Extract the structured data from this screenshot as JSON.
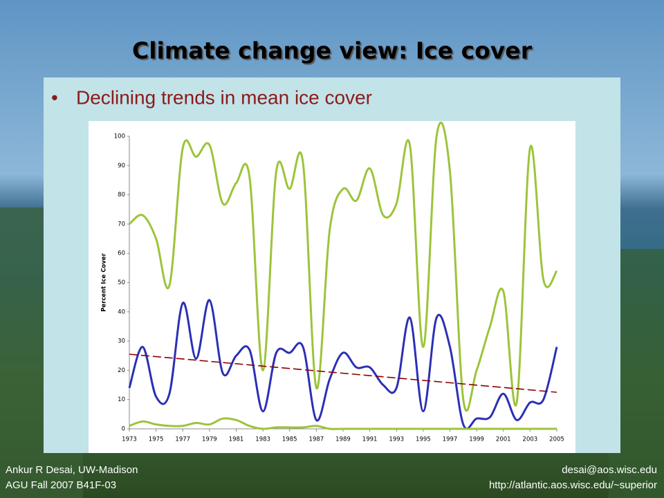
{
  "header": {
    "title": "Climate change view: Ice cover"
  },
  "bullet": "Declining trends in mean ice cover",
  "footer": {
    "left": [
      "Ankur R Desai, UW-Madison",
      "AGU Fall 2007 B41F-03"
    ],
    "right": [
      "desai@aos.wisc.edu",
      "http://atlantic.aos.wisc.edu/~superior"
    ]
  },
  "chart_data": {
    "type": "line",
    "y_label": "Percent Ice Cover",
    "x": [
      1973,
      1974,
      1975,
      1976,
      1977,
      1978,
      1979,
      1980,
      1981,
      1982,
      1983,
      1984,
      1985,
      1986,
      1987,
      1988,
      1989,
      1990,
      1991,
      1992,
      1993,
      1994,
      1995,
      1996,
      1997,
      1998,
      1999,
      2000,
      2001,
      2002,
      2003,
      2004,
      2005
    ],
    "series": [
      {
        "color": "#9cc43a",
        "values": [
          70,
          73,
          65,
          49,
          96,
          93,
          97,
          77,
          84,
          86,
          20,
          88,
          82,
          91,
          14,
          68,
          82,
          78,
          89,
          73,
          77,
          97,
          28,
          100,
          88,
          10,
          20,
          35,
          47,
          9,
          96,
          51,
          54
        ]
      },
      {
        "color": "#2b2fb5",
        "values": [
          14,
          28,
          11,
          12,
          43,
          24,
          44,
          19,
          25,
          27,
          6,
          26,
          26,
          28,
          3,
          17,
          26,
          21,
          21,
          15,
          14,
          38,
          6,
          38,
          28,
          1.5,
          3.5,
          4,
          12,
          3,
          9,
          10,
          28
        ]
      },
      {
        "color": "#9cc43a",
        "values": [
          1,
          2.5,
          1.5,
          1,
          1,
          2,
          1.5,
          3.5,
          3,
          1,
          0,
          0.5,
          0.5,
          0.5,
          1,
          0,
          0,
          0,
          0,
          0,
          0,
          0,
          0,
          0,
          0,
          0,
          0,
          0,
          0,
          0,
          0,
          0,
          0
        ]
      },
      {
        "color": "#8b0000",
        "dashed": true,
        "x": [
          1973,
          2005
        ],
        "values": [
          25.5,
          12.5
        ]
      }
    ],
    "xlim": [
      1973,
      2005
    ],
    "xticks": [
      1973,
      1975,
      1977,
      1979,
      1981,
      1983,
      1985,
      1987,
      1989,
      1991,
      1993,
      1995,
      1997,
      1999,
      2001,
      2003,
      2005
    ],
    "ylim": [
      0,
      100
    ],
    "yticks": [
      0,
      10,
      20,
      30,
      40,
      50,
      60,
      70,
      80,
      90,
      100
    ],
    "grid": false
  }
}
